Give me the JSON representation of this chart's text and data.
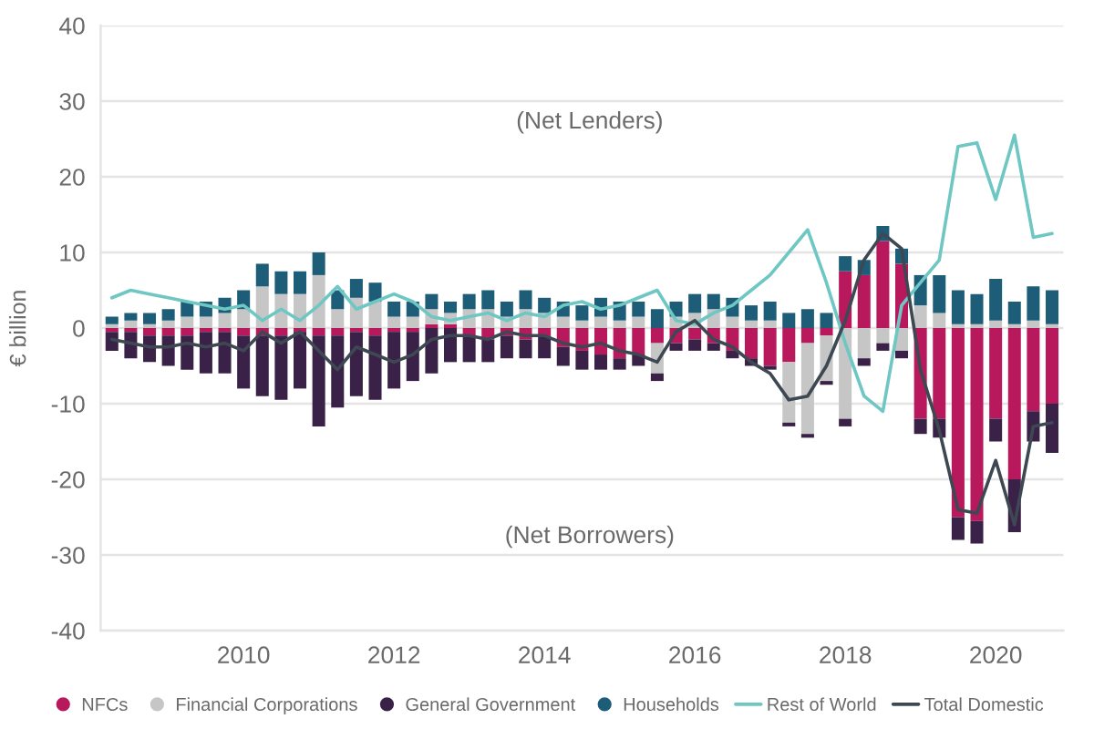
{
  "chart_data": {
    "type": "bar",
    "ylabel": "€ billion",
    "annotations": [
      "(Net Lenders)",
      "(Net Borrowers)"
    ],
    "stacked": true,
    "x": [
      2008.25,
      2008.5,
      2008.75,
      2009,
      2009.25,
      2009.5,
      2009.75,
      2010,
      2010.25,
      2010.5,
      2010.75,
      2011,
      2011.25,
      2011.5,
      2011.75,
      2012,
      2012.25,
      2012.5,
      2012.75,
      2013,
      2013.25,
      2013.5,
      2013.75,
      2014,
      2014.25,
      2014.5,
      2014.75,
      2015,
      2015.25,
      2015.5,
      2015.75,
      2016,
      2016.25,
      2016.5,
      2016.75,
      2017,
      2017.25,
      2017.5,
      2017.75,
      2018,
      2018.25,
      2018.5,
      2018.75,
      2019,
      2019.25,
      2019.5,
      2019.75,
      2020,
      2020.25,
      2020.5,
      2020.75
    ],
    "series": [
      {
        "name": "NFCs",
        "color": "#b8185c",
        "values": [
          -0.5,
          -0.5,
          -1,
          -1,
          -1,
          -0.5,
          -0.5,
          -1,
          -1,
          -1,
          -0.5,
          -1,
          -1,
          -0.5,
          -1,
          -0.5,
          -0.5,
          0.5,
          0.5,
          -1,
          -1.5,
          -1,
          -1.5,
          -1,
          -2.5,
          -3,
          -3.5,
          -4,
          -3.5,
          -2,
          -2,
          -1.5,
          -2,
          -3,
          -4,
          -5,
          -4.5,
          -2,
          -1,
          7.5,
          7,
          11.5,
          8.5,
          -12,
          -12,
          -25,
          -25.5,
          -12,
          -20,
          -11,
          -10
        ]
      },
      {
        "name": "Financial Corporations",
        "color": "#c6c6c6",
        "values": [
          0.5,
          1,
          0.5,
          1,
          1.5,
          1.5,
          2,
          2.5,
          5.5,
          4.5,
          4.5,
          7,
          2.5,
          4,
          3.5,
          1.5,
          1.5,
          2,
          1.5,
          2.5,
          2.5,
          1.5,
          2.5,
          2,
          1.5,
          1,
          1.5,
          1,
          1.5,
          -4,
          1.5,
          2,
          2.5,
          1.5,
          1,
          1,
          -8,
          -12,
          -6,
          -12,
          -4,
          -2,
          -3,
          3,
          2,
          0.5,
          0.5,
          1,
          0.5,
          1,
          0.5
        ]
      },
      {
        "name": "General Government",
        "color": "#3a2147",
        "values": [
          -2.5,
          -3.5,
          -3.5,
          -4,
          -4.5,
          -5.5,
          -5.5,
          -7,
          -8,
          -8.5,
          -7.5,
          -12,
          -9.5,
          -8.5,
          -8.5,
          -7.5,
          -6.5,
          -6,
          -4.5,
          -3.5,
          -3,
          -3,
          -2.5,
          -3,
          -2.5,
          -2.5,
          -2,
          -1.5,
          -1.5,
          -1,
          -1,
          -1.5,
          -1,
          -1,
          -1,
          -0.5,
          -0.5,
          -0.5,
          -0.5,
          -1,
          -1,
          -1,
          -1,
          -2,
          -2.5,
          -3,
          -3,
          -3,
          -7,
          -4,
          -6.5
        ]
      },
      {
        "name": "Households",
        "color": "#1e5d78",
        "values": [
          1,
          1,
          1.5,
          1.5,
          2,
          2,
          2,
          2.5,
          3,
          3,
          3,
          3,
          2.5,
          2.5,
          2.5,
          2,
          2,
          2,
          1.5,
          2,
          2.5,
          2,
          2.5,
          2,
          2,
          2,
          2.5,
          2.5,
          2,
          2.5,
          2,
          2.5,
          2,
          2.5,
          2,
          2.5,
          2,
          2.5,
          2,
          2,
          2,
          2,
          2,
          4,
          5,
          4.5,
          4,
          5.5,
          3,
          4.5,
          4.5
        ]
      },
      {
        "name": "Rest of World",
        "type": "line",
        "color": "#6fc7c3",
        "values": [
          4,
          5,
          4.5,
          4,
          3.5,
          3,
          2.5,
          3,
          1,
          2.5,
          1,
          3,
          5.5,
          2.5,
          3.5,
          4.5,
          3.5,
          1.5,
          1,
          1.5,
          2,
          1,
          2,
          1.5,
          3,
          3.5,
          2.5,
          3,
          4,
          5,
          1,
          0.5,
          2,
          3,
          5,
          7,
          10,
          13,
          6,
          -2,
          -9,
          -11,
          3,
          6,
          9,
          24,
          24.5,
          17,
          25.5,
          12,
          12.5
        ]
      },
      {
        "name": "Total Domestic",
        "type": "line",
        "color": "#3d4852",
        "values": [
          -1.5,
          -2,
          -2.5,
          -2.5,
          -2,
          -2.5,
          -2,
          -3,
          -0.5,
          -2,
          -0.5,
          -3,
          -5.5,
          -2.5,
          -3.5,
          -4.5,
          -3.5,
          -1.5,
          -1,
          -1,
          -1.5,
          -0.5,
          -1,
          -1,
          -2,
          -2.5,
          -2,
          -3,
          -3.5,
          -4.5,
          -0.5,
          1,
          -1.5,
          -2.5,
          -4.5,
          -6,
          -9.5,
          -9,
          -5,
          1,
          9,
          12.5,
          10.5,
          -5.5,
          -13.5,
          -24,
          -24.5,
          -17.5,
          -26,
          -13,
          -12.5
        ]
      }
    ],
    "xlim": [
      2008.1,
      2020.9
    ],
    "xticks": [
      2010,
      2012,
      2014,
      2016,
      2018,
      2020
    ],
    "ylim": [
      -40,
      40
    ],
    "yticks": [
      -40,
      -30,
      -20,
      -10,
      0,
      10,
      20,
      30,
      40
    ],
    "grid": "y",
    "legend": "bottom",
    "line_style": "solid"
  }
}
